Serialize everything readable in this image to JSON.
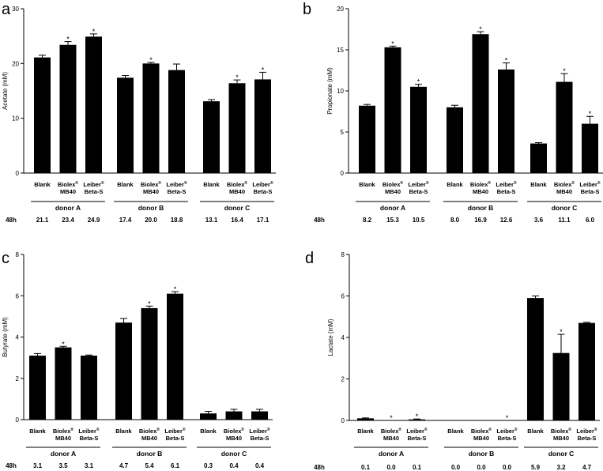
{
  "chart_data": [
    {
      "type": "bar",
      "panel": "a",
      "ylabel": "Acetate (mM)",
      "ylim": [
        0,
        30
      ],
      "yticks": [
        0,
        10,
        20,
        30
      ],
      "time_label": "48h",
      "groups": [
        {
          "name": "donor A",
          "bars": [
            {
              "label": "Blank",
              "value": 21.1,
              "err": 0.4,
              "star": false,
              "printed": "21.1"
            },
            {
              "label": "Biolex®\nMB40",
              "value": 23.4,
              "err": 0.6,
              "star": true,
              "printed": "23.4"
            },
            {
              "label": "Leiber®\nBeta-S",
              "value": 24.9,
              "err": 0.5,
              "star": true,
              "printed": "24.9"
            }
          ]
        },
        {
          "name": "donor B",
          "bars": [
            {
              "label": "Blank",
              "value": 17.4,
              "err": 0.4,
              "star": false,
              "printed": "17.4"
            },
            {
              "label": "Biolex®\nMB40",
              "value": 20.0,
              "err": 0.2,
              "star": true,
              "printed": "20.0"
            },
            {
              "label": "Leiber®\nBeta-S",
              "value": 18.8,
              "err": 1.1,
              "star": false,
              "printed": "18.8"
            }
          ]
        },
        {
          "name": "donor C",
          "bars": [
            {
              "label": "Blank",
              "value": 13.1,
              "err": 0.3,
              "star": false,
              "printed": "13.1"
            },
            {
              "label": "Biolex®\nMB40",
              "value": 16.4,
              "err": 0.6,
              "star": true,
              "printed": "16.4"
            },
            {
              "label": "Leiber®\nBeta-S",
              "value": 17.1,
              "err": 1.3,
              "star": true,
              "printed": "17.1"
            }
          ]
        }
      ]
    },
    {
      "type": "bar",
      "panel": "b",
      "ylabel": "Propionate (mM)",
      "ylim": [
        0,
        20
      ],
      "yticks": [
        0,
        5,
        10,
        15,
        20
      ],
      "time_label": "48h",
      "groups": [
        {
          "name": "donor A",
          "bars": [
            {
              "label": "Blank",
              "value": 8.2,
              "err": 0.15,
              "star": false,
              "printed": "8.2"
            },
            {
              "label": "Biolex®\nMB40",
              "value": 15.3,
              "err": 0.15,
              "star": true,
              "printed": "15.3"
            },
            {
              "label": "Leiber®\nBeta-S",
              "value": 10.5,
              "err": 0.3,
              "star": true,
              "printed": "10.5"
            }
          ]
        },
        {
          "name": "donor B",
          "bars": [
            {
              "label": "Blank",
              "value": 8.0,
              "err": 0.25,
              "star": false,
              "printed": "8.0"
            },
            {
              "label": "Biolex®\nMB40",
              "value": 16.9,
              "err": 0.3,
              "star": true,
              "printed": "16.9"
            },
            {
              "label": "Leiber®\nBeta-S",
              "value": 12.6,
              "err": 0.8,
              "star": true,
              "printed": "12.6"
            }
          ]
        },
        {
          "name": "donor C",
          "bars": [
            {
              "label": "Blank",
              "value": 3.6,
              "err": 0.1,
              "star": false,
              "printed": "3.6"
            },
            {
              "label": "Biolex®\nMB40",
              "value": 11.1,
              "err": 1.0,
              "star": true,
              "printed": "11.1"
            },
            {
              "label": "Leiber®\nBeta-S",
              "value": 6.0,
              "err": 0.9,
              "star": true,
              "printed": "6.0"
            }
          ]
        }
      ]
    },
    {
      "type": "bar",
      "panel": "c",
      "ylabel": "Butyrate (mM)",
      "ylim": [
        0,
        8
      ],
      "yticks": [
        0,
        2,
        4,
        6,
        8
      ],
      "time_label": "48h",
      "groups": [
        {
          "name": "donor A",
          "bars": [
            {
              "label": "Blank",
              "value": 3.1,
              "err": 0.1,
              "star": false,
              "printed": "3.1"
            },
            {
              "label": "Biolex®\nMB40",
              "value": 3.5,
              "err": 0.05,
              "star": true,
              "printed": "3.5"
            },
            {
              "label": "Leiber®\nBeta-S",
              "value": 3.1,
              "err": 0.03,
              "star": false,
              "printed": "3.1"
            }
          ]
        },
        {
          "name": "donor B",
          "bars": [
            {
              "label": "Blank",
              "value": 4.7,
              "err": 0.2,
              "star": false,
              "printed": "4.7"
            },
            {
              "label": "Biolex®\nMB40",
              "value": 5.4,
              "err": 0.1,
              "star": true,
              "printed": "5.4"
            },
            {
              "label": "Leiber®\nBeta-S",
              "value": 6.1,
              "err": 0.1,
              "star": true,
              "printed": "6.1"
            }
          ]
        },
        {
          "name": "donor C",
          "bars": [
            {
              "label": "Blank",
              "value": 0.3,
              "err": 0.1,
              "star": false,
              "printed": "0.3"
            },
            {
              "label": "Biolex®\nMB40",
              "value": 0.4,
              "err": 0.1,
              "star": false,
              "printed": "0.4"
            },
            {
              "label": "Leiber®\nBeta-S",
              "value": 0.4,
              "err": 0.1,
              "star": false,
              "printed": "0.4"
            }
          ]
        }
      ]
    },
    {
      "type": "bar",
      "panel": "d",
      "ylabel": "Lactate (mM)",
      "ylim": [
        0,
        8
      ],
      "yticks": [
        0,
        2,
        4,
        6,
        8
      ],
      "time_label": "48h",
      "groups": [
        {
          "name": "donor A",
          "bars": [
            {
              "label": "Blank",
              "value": 0.1,
              "err": 0.02,
              "star": false,
              "printed": "0.1"
            },
            {
              "label": "Biolex®\nMB40",
              "value": 0.0,
              "err": 0.0,
              "star": true,
              "printed": "0.0"
            },
            {
              "label": "Leiber®\nBeta-S",
              "value": 0.05,
              "err": 0.02,
              "star": true,
              "printed": "0.1"
            }
          ]
        },
        {
          "name": "donor B",
          "bars": [
            {
              "label": "Blank",
              "value": 0.0,
              "err": 0.0,
              "star": false,
              "printed": "0.0"
            },
            {
              "label": "Biolex®\nMB40",
              "value": 0.0,
              "err": 0.0,
              "star": false,
              "printed": "0.0"
            },
            {
              "label": "Leiber®\nBeta-S",
              "value": 0.0,
              "err": 0.0,
              "star": true,
              "printed": "0.0"
            }
          ]
        },
        {
          "name": "donor C",
          "bars": [
            {
              "label": "Blank",
              "value": 5.9,
              "err": 0.1,
              "star": false,
              "printed": "5.9"
            },
            {
              "label": "Biolex®\nMB40",
              "value": 3.25,
              "err": 0.9,
              "star": true,
              "printed": "3.2"
            },
            {
              "label": "Leiber®\nBeta-S",
              "value": 4.7,
              "err": 0.03,
              "star": false,
              "printed": "4.7"
            }
          ]
        }
      ]
    }
  ]
}
